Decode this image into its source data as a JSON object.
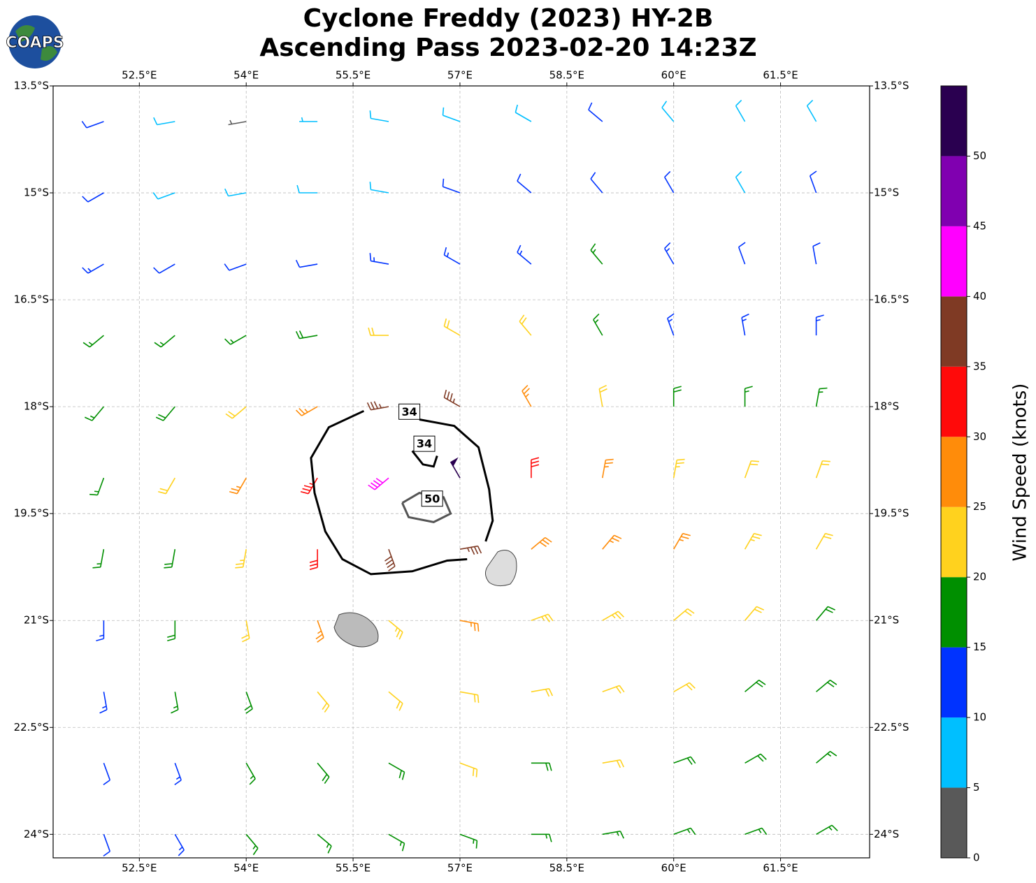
{
  "logo": "COAPS",
  "chart_data": {
    "type": "barbs",
    "title": "Cyclone Freddy (2023) HY-2B",
    "subtitle": "Ascending Pass 2023-02-20 14:23Z",
    "xlim": [
      51.29,
      62.75
    ],
    "ylim": [
      -24.33,
      -13.5
    ],
    "xticks": [
      {
        "value": 52.5,
        "label": "52.5°E"
      },
      {
        "value": 54,
        "label": "54°E"
      },
      {
        "value": 55.5,
        "label": "55.5°E"
      },
      {
        "value": 57,
        "label": "57°E"
      },
      {
        "value": 58.5,
        "label": "58.5°E"
      },
      {
        "value": 60,
        "label": "60°E"
      },
      {
        "value": 61.5,
        "label": "61.5°E"
      }
    ],
    "yticks": [
      {
        "value": -13.5,
        "label": "13.5°S"
      },
      {
        "value": -15,
        "label": "15°S"
      },
      {
        "value": -16.5,
        "label": "16.5°S"
      },
      {
        "value": -18,
        "label": "18°S"
      },
      {
        "value": -19.5,
        "label": "19.5°S"
      },
      {
        "value": -21,
        "label": "21°S"
      },
      {
        "value": -22.5,
        "label": "22.5°S"
      },
      {
        "value": -24,
        "label": "24°S"
      }
    ],
    "grid": true,
    "winds": {
      "lons": [
        52,
        53,
        54,
        55,
        56,
        57,
        58,
        59,
        60,
        61,
        62
      ],
      "lats": [
        -14,
        -15,
        -16,
        -17,
        -18,
        -19,
        -20,
        -21,
        -22,
        -23,
        -24
      ],
      "speed": [
        [
          12,
          8,
          4,
          7,
          8,
          9,
          9,
          11,
          9,
          8,
          8
        ],
        [
          12,
          9,
          8,
          8,
          9,
          11,
          11,
          12,
          12,
          9,
          10
        ],
        [
          13,
          12,
          12,
          12,
          13,
          13,
          14,
          16,
          13,
          12,
          12
        ],
        [
          16,
          16,
          17,
          18,
          21,
          22,
          21,
          17,
          14,
          13,
          13
        ],
        [
          17,
          18,
          21,
          27,
          36,
          37,
          26,
          22,
          18,
          16,
          16
        ],
        [
          17,
          20,
          26,
          33,
          42,
          50,
          32,
          27,
          23,
          22,
          21
        ],
        [
          16,
          19,
          24,
          32,
          38,
          37,
          28,
          27,
          26,
          24,
          22
        ],
        [
          14,
          18,
          22,
          26,
          24,
          27,
          24,
          23,
          22,
          21,
          19
        ],
        [
          13,
          16,
          18,
          21,
          22,
          22,
          22,
          21,
          21,
          19,
          18
        ],
        [
          12,
          14,
          16,
          18,
          19,
          20,
          19,
          20,
          19,
          18,
          17
        ],
        [
          12,
          13,
          15,
          16,
          17,
          17,
          17,
          17,
          17,
          17,
          16
        ]
      ],
      "direction": [
        [
          250,
          260,
          260,
          270,
          280,
          290,
          300,
          310,
          320,
          330,
          330
        ],
        [
          240,
          250,
          260,
          270,
          280,
          290,
          310,
          320,
          330,
          330,
          340
        ],
        [
          240,
          240,
          250,
          260,
          280,
          300,
          310,
          320,
          330,
          340,
          350
        ],
        [
          230,
          230,
          240,
          260,
          270,
          300,
          320,
          330,
          340,
          350,
          0
        ],
        [
          220,
          220,
          230,
          240,
          260,
          300,
          330,
          350,
          0,
          0,
          10
        ],
        [
          200,
          210,
          210,
          210,
          230,
          330,
          0,
          10,
          10,
          20,
          20
        ],
        [
          190,
          190,
          190,
          180,
          160,
          80,
          50,
          40,
          30,
          30,
          30
        ],
        [
          180,
          180,
          170,
          160,
          130,
          100,
          70,
          60,
          50,
          40,
          40
        ],
        [
          170,
          170,
          160,
          140,
          130,
          100,
          80,
          70,
          60,
          50,
          50
        ],
        [
          160,
          160,
          150,
          140,
          120,
          110,
          90,
          80,
          70,
          60,
          50
        ],
        [
          160,
          150,
          140,
          130,
          120,
          110,
          90,
          80,
          70,
          70,
          60
        ]
      ]
    },
    "contours": [
      {
        "level": 34,
        "color": "#000000",
        "pieces": [
          [
            [
              55.65,
              -18.06
            ],
            [
              55.16,
              -18.29
            ],
            [
              54.91,
              -18.72
            ],
            [
              54.96,
              -19.21
            ],
            [
              55.11,
              -19.75
            ],
            [
              55.35,
              -20.14
            ],
            [
              55.75,
              -20.35
            ],
            [
              56.33,
              -20.31
            ],
            [
              56.82,
              -20.16
            ],
            [
              57.1,
              -20.14
            ]
          ],
          [
            [
              57.36,
              -19.89
            ],
            [
              57.46,
              -19.6
            ],
            [
              57.41,
              -19.16
            ],
            [
              57.26,
              -18.57
            ],
            [
              56.92,
              -18.27
            ],
            [
              56.43,
              -18.18
            ]
          ],
          [
            [
              56.33,
              -18.62
            ],
            [
              56.48,
              -18.81
            ],
            [
              56.63,
              -18.84
            ],
            [
              56.68,
              -18.69
            ]
          ]
        ],
        "labels": [
          {
            "text": "34",
            "lon": 56.29,
            "lat": -18.07
          },
          {
            "text": "34",
            "lon": 56.5,
            "lat": -18.52
          }
        ]
      },
      {
        "level": 50,
        "color": "#555555",
        "pieces": [
          [
            [
              56.19,
              -19.35
            ],
            [
              56.28,
              -19.55
            ],
            [
              56.63,
              -19.62
            ],
            [
              56.87,
              -19.5
            ],
            [
              56.77,
              -19.27
            ],
            [
              56.43,
              -19.21
            ],
            [
              56.19,
              -19.35
            ]
          ]
        ],
        "labels": [
          {
            "text": "50",
            "lon": 56.61,
            "lat": -19.29
          }
        ]
      }
    ],
    "colorbar": {
      "label": "Wind Speed (knots)",
      "bounds": [
        0,
        5,
        10,
        15,
        20,
        25,
        30,
        35,
        40,
        45,
        50,
        55
      ],
      "colors": [
        "#595959",
        "#00bfff",
        "#0033ff",
        "#008f00",
        "#ffd21e",
        "#ff8c0a",
        "#ff0a0a",
        "#7f3a24",
        "#ff00ff",
        "#8000b0",
        "#2a0050"
      ],
      "ticks": [
        0,
        5,
        10,
        15,
        20,
        25,
        30,
        35,
        40,
        45,
        50
      ]
    }
  }
}
